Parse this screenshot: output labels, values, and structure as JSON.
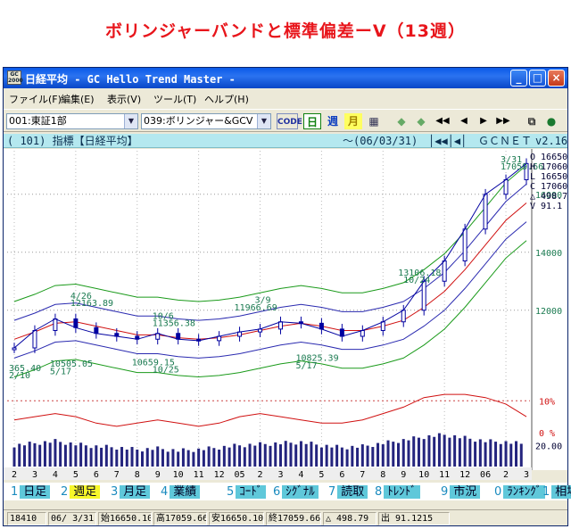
{
  "page_heading": "ボリンジャーバンドと標準偏差ーV（13週）",
  "window": {
    "title": "日経平均 - GC Hello Trend Master -",
    "icon_text_top": "GC",
    "icon_text_bottom": "2000",
    "min_label": "_",
    "max_label": "□",
    "close_label": "×"
  },
  "menu": [
    "ファイル(F)",
    "編集(E)",
    "表示(V)",
    "ツール(T)",
    "ヘルプ(H)"
  ],
  "toolbar": {
    "market_select": "001:東証1部",
    "indicator_select": "039:ボリンジャー&GCV",
    "code_label": "CODE",
    "daily_label": "日",
    "weekly_label": "週",
    "monthly_label": "月",
    "nav_buttons": [
      "◆",
      "◆",
      "◀◀",
      "◀",
      "▶",
      "▶▶"
    ]
  },
  "infobar": {
    "code": "( 101) 指標【日経平均】",
    "date": "～(06/03/31)",
    "nav": "│◀◀│◀│",
    "brand": "ＧＣＮＥＴ",
    "version": "v2.16"
  },
  "chart_data": [
    {
      "type": "line",
      "title": "",
      "x": [
        "2",
        "3",
        "4",
        "5",
        "6",
        "7",
        "8",
        "9",
        "10",
        "11",
        "12",
        "05",
        "2",
        "3",
        "4",
        "5",
        "6",
        "7",
        "8",
        "9",
        "10",
        "11",
        "12",
        "06",
        "2",
        "3"
      ],
      "series": [
        {
          "name": "",
          "values": [
            10700,
            11300,
            11700,
            11400,
            11200,
            11100,
            11000,
            11200,
            11000,
            10950,
            11100,
            11250,
            11350,
            11600,
            11550,
            11350,
            11100,
            11300,
            11600,
            12000,
            13000,
            13700,
            14800,
            16000,
            16500,
            17059
          ]
        },
        {
          "name": "",
          "values": [
            11000,
            11250,
            11550,
            11600,
            11450,
            11300,
            11150,
            11150,
            11050,
            11000,
            11050,
            11150,
            11300,
            11450,
            11550,
            11450,
            11300,
            11300,
            11450,
            11650,
            12100,
            12650,
            13400,
            14250,
            15100,
            15700
          ]
        }
      ],
      "price_axis_labels": [
        "16000",
        "14000",
        "12000"
      ],
      "ylim": [
        9500,
        17500
      ],
      "annotations": [
        {
          "text": "4/26",
          "x": "4"
        },
        {
          "text": "12163.89",
          "x": "4"
        },
        {
          "text": "10/6",
          "x": "10"
        },
        {
          "text": "11356.38",
          "x": "10"
        },
        {
          "text": "3/9",
          "x": "3"
        },
        {
          "text": "11966.69",
          "x": "3"
        },
        {
          "text": "13106.18",
          "x": "11"
        },
        {
          "text": "10/24",
          "x": "11"
        },
        {
          "text": "3/31",
          "x": "3"
        },
        {
          "text": "17059.66",
          "x": "3"
        },
        {
          "text": "10505.05",
          "x": "5"
        },
        {
          "text": "5/17",
          "x": "5"
        },
        {
          "text": "10659.15",
          "x": "10"
        },
        {
          "text": "10/25",
          "x": "10"
        },
        {
          "text": "10825.39",
          "x": "5"
        },
        {
          "text": "5/17",
          "x": "5"
        },
        {
          "text": "365.40",
          "x": "2"
        },
        {
          "text": "2/10",
          "x": "2"
        }
      ],
      "ohlc_readout": [
        "O 16650",
        "H 17060",
        "L 16650",
        "C 17060",
        "△ 498.7",
        "V  91.1"
      ]
    },
    {
      "type": "line",
      "series": [
        {
          "name": "",
          "values": [
            4,
            5,
            6,
            5,
            3,
            2,
            3,
            4,
            3,
            2,
            3,
            5,
            6,
            5,
            4,
            3,
            3,
            4,
            6,
            8,
            11,
            12,
            12,
            11,
            9,
            5
          ]
        }
      ],
      "axis_labels": [
        "10%",
        "0 %"
      ]
    },
    {
      "type": "bar",
      "series": [
        {
          "name": "",
          "values": [
            20,
            22,
            24,
            21,
            19,
            18,
            16,
            17,
            15,
            16,
            18,
            20,
            21,
            22,
            23,
            20,
            18,
            19,
            22,
            25,
            28,
            30,
            27,
            24,
            23,
            21
          ]
        }
      ],
      "axis_label": "20.00"
    }
  ],
  "tabs": [
    {
      "num": "1",
      "label": "日足"
    },
    {
      "num": "2",
      "label": "週足"
    },
    {
      "num": "3",
      "label": "月足"
    },
    {
      "num": "4",
      "label": "業績"
    },
    {
      "num": "5",
      "label": "ｺｰﾄﾞ"
    },
    {
      "num": "6",
      "label": "ｼｸﾞﾅﾙ"
    },
    {
      "num": "7",
      "label": "読取"
    },
    {
      "num": "8",
      "label": "ﾄﾚﾝﾄﾞ"
    },
    {
      "num": "9",
      "label": "市況"
    },
    {
      "num": "0",
      "label": "ﾗﾝｷﾝｸﾞ"
    },
    {
      "num": "1",
      "label": "相場"
    }
  ],
  "status": {
    "code": "18410",
    "date": "06/ 3/31",
    "open": "始16650.10",
    "high": "高17059.66",
    "low": "安16650.10",
    "close": "終17059.66",
    "change": "△  498.79",
    "volume": "出   91.1215"
  },
  "colors": {
    "price": "#0000a0",
    "ma": "#d01010",
    "band_inner": "#2a2ab0",
    "band_outer": "#1a9a1a",
    "volume": "#24247e",
    "deviation": "#d01010"
  }
}
